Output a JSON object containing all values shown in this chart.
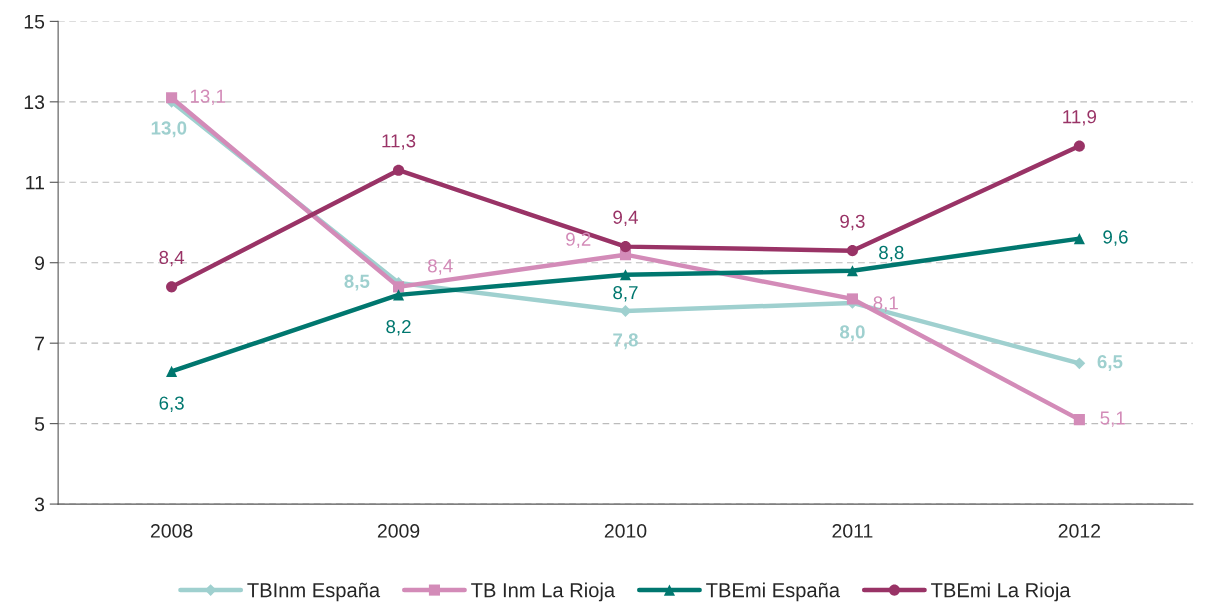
{
  "chart_data": {
    "type": "line",
    "categories": [
      "2008",
      "2009",
      "2010",
      "2011",
      "2012"
    ],
    "series": [
      {
        "name": "TBInm España",
        "color": "#9fd0cf",
        "marker": "diamond",
        "values": [
          13.0,
          8.5,
          7.8,
          8.0,
          6.5
        ],
        "value_labels": [
          "13,0",
          "8,5",
          "7,8",
          "8,0",
          "6,5"
        ]
      },
      {
        "name": "TB Inm La Rioja",
        "color": "#d38bb8",
        "marker": "square",
        "values": [
          13.1,
          8.4,
          9.2,
          8.1,
          5.1
        ],
        "value_labels": [
          "13,1",
          "8,4",
          "9,2",
          "8,1",
          "5,1"
        ]
      },
      {
        "name": "TBEmi España",
        "color": "#00776f",
        "marker": "triangle",
        "values": [
          6.3,
          8.2,
          8.7,
          8.8,
          9.6
        ],
        "value_labels": [
          "6,3",
          "8,2",
          "8,7",
          "8,8",
          "9,6"
        ]
      },
      {
        "name": "TBEmi La Rioja",
        "color": "#993366",
        "marker": "circle",
        "values": [
          8.4,
          11.3,
          9.4,
          9.3,
          11.9
        ],
        "value_labels": [
          "8,4",
          "11,3",
          "9,4",
          "9,3",
          "11,9"
        ]
      }
    ],
    "ylim": [
      3,
      15
    ],
    "yticks": [
      3,
      5,
      7,
      9,
      11,
      13,
      15
    ],
    "grid": "y",
    "legend": "bottom",
    "line_style": "solid"
  }
}
